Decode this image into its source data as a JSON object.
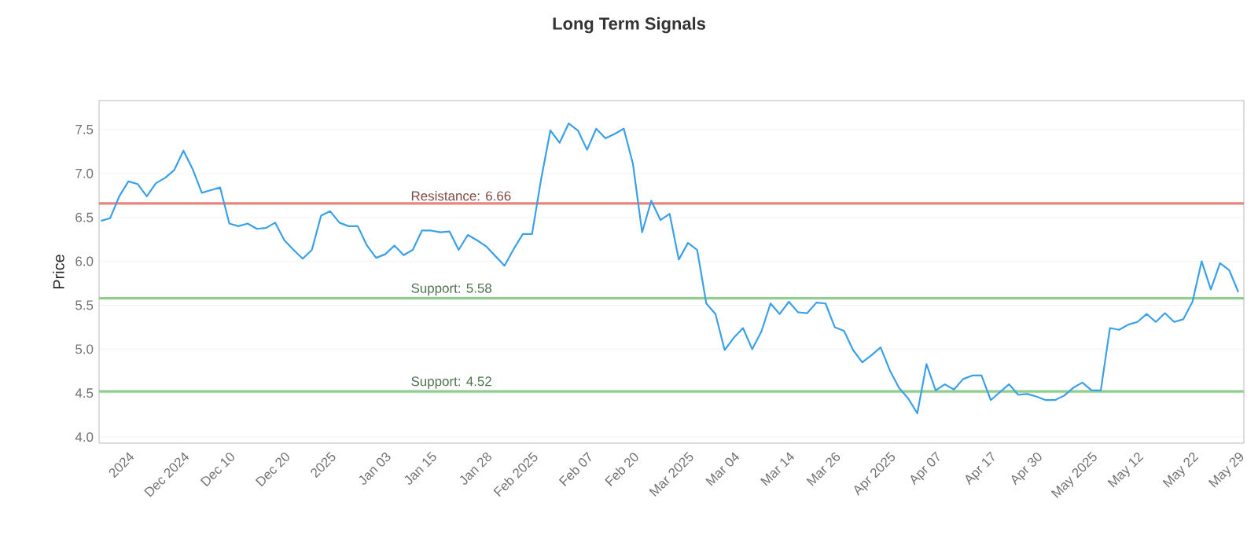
{
  "chart_data": {
    "type": "line",
    "title": "Long Term Signals",
    "ylabel": "Price",
    "categories": [
      null,
      null,
      null,
      "2024",
      null,
      null,
      null,
      null,
      null,
      "Dec 2024",
      null,
      null,
      null,
      null,
      "Dec 10",
      null,
      null,
      null,
      null,
      null,
      "Dec 20",
      null,
      null,
      null,
      null,
      "2025",
      null,
      null,
      null,
      null,
      null,
      "Jan 03",
      null,
      null,
      null,
      null,
      "Jan 15",
      null,
      null,
      null,
      null,
      null,
      "Jan 28",
      null,
      null,
      null,
      null,
      "Feb 2025",
      null,
      null,
      null,
      null,
      null,
      "Feb 07",
      null,
      null,
      null,
      null,
      "Feb 20",
      null,
      null,
      null,
      null,
      null,
      "Mar 2025",
      null,
      null,
      null,
      null,
      "Mar 04",
      null,
      null,
      null,
      null,
      null,
      "Mar 14",
      null,
      null,
      null,
      null,
      "Mar 26",
      null,
      null,
      null,
      null,
      null,
      "Apr 2025",
      null,
      null,
      null,
      null,
      "Apr 07",
      null,
      null,
      null,
      null,
      null,
      "Apr 17",
      null,
      null,
      null,
      null,
      "Apr 30",
      null,
      null,
      null,
      null,
      null,
      "May 2025",
      null,
      null,
      null,
      null,
      "May 12",
      null,
      null,
      null,
      null,
      null,
      "May 22",
      null,
      null,
      null,
      null,
      "May 29"
    ],
    "series": [
      {
        "color": "#3aa0e8",
        "values": [
          6.46,
          6.49,
          6.74,
          6.91,
          6.88,
          6.74,
          6.89,
          6.95,
          7.04,
          7.26,
          7.05,
          6.78,
          6.81,
          6.84,
          6.43,
          6.4,
          6.43,
          6.37,
          6.38,
          6.44,
          6.24,
          6.13,
          6.03,
          6.13,
          6.52,
          6.57,
          6.44,
          6.4,
          6.4,
          6.18,
          6.04,
          6.08,
          6.18,
          6.07,
          6.13,
          6.35,
          6.35,
          6.33,
          6.34,
          6.13,
          6.3,
          6.24,
          6.17,
          6.06,
          5.95,
          6.14,
          6.31,
          6.31,
          6.94,
          7.49,
          7.35,
          7.57,
          7.49,
          7.27,
          7.51,
          7.4,
          7.45,
          7.51,
          7.11,
          6.33,
          6.69,
          6.47,
          6.54,
          6.02,
          6.21,
          6.13,
          5.52,
          5.4,
          4.99,
          5.13,
          5.24,
          5.0,
          5.2,
          5.52,
          5.4,
          5.54,
          5.42,
          5.41,
          5.53,
          5.52,
          5.25,
          5.21,
          4.99,
          4.85,
          4.93,
          5.02,
          4.76,
          4.56,
          4.44,
          4.27,
          4.83,
          4.53,
          4.6,
          4.54,
          4.66,
          4.7,
          4.7,
          4.42,
          4.51,
          4.6,
          4.48,
          4.49,
          4.46,
          4.42,
          4.42,
          4.47,
          4.56,
          4.62,
          4.53,
          4.53,
          5.24,
          5.22,
          5.28,
          5.31,
          5.4,
          5.31,
          5.41,
          5.31,
          5.34,
          5.54,
          6.0,
          5.68,
          5.98,
          5.9,
          5.65
        ]
      }
    ],
    "ylim": [
      3.93,
      7.83
    ],
    "yticks": [
      {
        "value": 4.0,
        "label": "4.0"
      },
      {
        "value": 4.5,
        "label": "4.5"
      },
      {
        "value": 5.0,
        "label": "5.0"
      },
      {
        "value": 5.5,
        "label": "5.5"
      },
      {
        "value": 6.0,
        "label": "6.0"
      },
      {
        "value": 6.5,
        "label": "6.5"
      },
      {
        "value": 7.0,
        "label": "7.0"
      },
      {
        "value": 7.5,
        "label": "7.5"
      }
    ],
    "grid": "y",
    "ref_lines": [
      {
        "axis": "y",
        "value": 6.66,
        "label": "Resistance: 6.66",
        "color": "#e8847c"
      },
      {
        "axis": "y",
        "value": 5.58,
        "label": "Support: 5.58",
        "color": "#8fce8f"
      },
      {
        "axis": "y",
        "value": 4.52,
        "label": "Support: 4.52",
        "color": "#8fce8f"
      }
    ]
  }
}
